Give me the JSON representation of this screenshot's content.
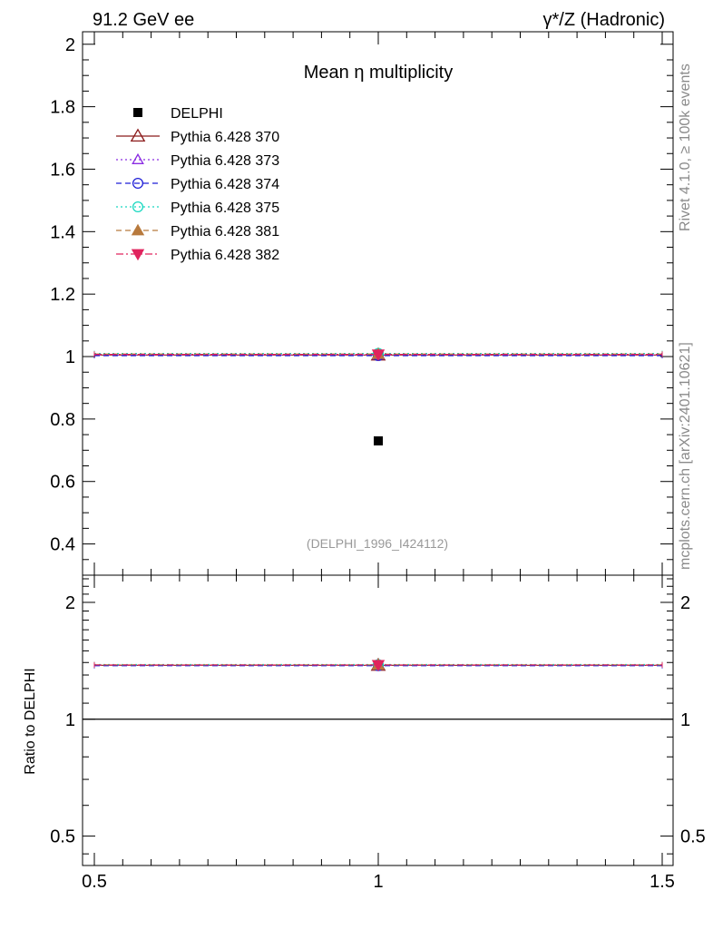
{
  "header": {
    "left": "91.2 GeV ee",
    "right": "γ*/Z (Hadronic)"
  },
  "side": {
    "top": "Rivet 4.1.0, ≥ 100k events",
    "bottom": "mcplots.cern.ch [arXiv:2401.10621]"
  },
  "colors": {
    "data": "#000000",
    "p370": "#8b1a1a",
    "p373": "#8a2be2",
    "p374": "#1f1fd6",
    "p375": "#18d8c0",
    "p381": "#b87a3d",
    "p382": "#e0245e"
  },
  "chart_data": [
    {
      "type": "scatter",
      "title": "Mean η multiplicity",
      "annotation": "(DELPHI_1996_I424112)",
      "xlim": [
        0.5,
        1.5
      ],
      "ylim": [
        0.3,
        2.04
      ],
      "yticks": [
        {
          "v": 0.4,
          "label": "0.4"
        },
        {
          "v": 0.6,
          "label": "0.6"
        },
        {
          "v": 0.8,
          "label": "0.8"
        },
        {
          "v": 1.0,
          "label": "1"
        },
        {
          "v": 1.2,
          "label": "1.2"
        },
        {
          "v": 1.4,
          "label": "1.4"
        },
        {
          "v": 1.6,
          "label": "1.6"
        },
        {
          "v": 1.8,
          "label": "1.8"
        },
        {
          "v": 2.0,
          "label": "2"
        }
      ],
      "series": [
        {
          "name": "DELPHI",
          "key": "data",
          "x": 1.0,
          "y": 0.73,
          "style": "data",
          "marker": "square"
        },
        {
          "name": "Pythia 6.428 370",
          "key": "p370",
          "x": [
            0.5,
            1.5
          ],
          "y": 1.005,
          "style": "solid",
          "marker": "triangle-open"
        },
        {
          "name": "Pythia 6.428 373",
          "key": "p373",
          "x": [
            0.5,
            1.5
          ],
          "y": 1.005,
          "style": "dotted",
          "marker": "triangle-open-small"
        },
        {
          "name": "Pythia 6.428 374",
          "key": "p374",
          "x": [
            0.5,
            1.5
          ],
          "y": 1.003,
          "style": "dashed",
          "marker": "circle-open"
        },
        {
          "name": "Pythia 6.428 375",
          "key": "p375",
          "x": [
            0.5,
            1.5
          ],
          "y": 1.01,
          "style": "dotted",
          "marker": "circle-open"
        },
        {
          "name": "Pythia 6.428 381",
          "key": "p381",
          "x": [
            0.5,
            1.5
          ],
          "y": 1.008,
          "style": "dashed",
          "marker": "triangle-filled"
        },
        {
          "name": "Pythia 6.428 382",
          "key": "p382",
          "x": [
            0.5,
            1.5
          ],
          "y": 1.007,
          "style": "dashdot",
          "marker": "triangle-down-filled"
        }
      ]
    },
    {
      "type": "line",
      "ylabel": "Ratio to DELPHI",
      "xlim": [
        0.5,
        1.5
      ],
      "ylim": [
        0.42,
        2.35
      ],
      "yscale": "log",
      "xticks": [
        {
          "v": 0.5,
          "label": "0.5"
        },
        {
          "v": 1.0,
          "label": "1"
        },
        {
          "v": 1.5,
          "label": "1.5"
        }
      ],
      "yticks": [
        {
          "v": 0.5,
          "label": "0.5"
        },
        {
          "v": 1.0,
          "label": "1"
        },
        {
          "v": 2.0,
          "label": "2"
        }
      ],
      "reference": 1.0,
      "series": [
        {
          "name": "Pythia 6.428 370",
          "key": "p370",
          "y": 1.377,
          "style": "solid"
        },
        {
          "name": "Pythia 6.428 373",
          "key": "p373",
          "y": 1.377,
          "style": "dotted"
        },
        {
          "name": "Pythia 6.428 374",
          "key": "p374",
          "y": 1.374,
          "style": "dashed"
        },
        {
          "name": "Pythia 6.428 375",
          "key": "p375",
          "y": 1.383,
          "style": "dotted"
        },
        {
          "name": "Pythia 6.428 381",
          "key": "p381",
          "y": 1.381,
          "style": "dashed"
        },
        {
          "name": "Pythia 6.428 382",
          "key": "p382",
          "y": 1.38,
          "style": "dashdot"
        }
      ]
    }
  ]
}
